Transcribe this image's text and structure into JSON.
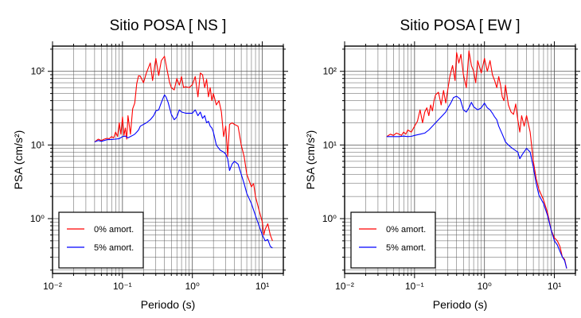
{
  "chart_data": [
    {
      "type": "line",
      "title": "Sitio POSA [ NS ]",
      "xlabel": "Periodo (s)",
      "ylabel": "PSA (cm/s²)",
      "xscale": "log",
      "yscale": "log",
      "xlim": [
        0.01,
        20
      ],
      "ylim": [
        0.18,
        220
      ],
      "grid": true,
      "legend_position": "bottom-left",
      "x_ticks": [
        {
          "value": 0.01,
          "label": "10⁻²"
        },
        {
          "value": 0.1,
          "label": "10⁻¹"
        },
        {
          "value": 1,
          "label": "10⁰"
        },
        {
          "value": 10,
          "label": "10¹"
        }
      ],
      "y_ticks": [
        {
          "value": 1,
          "label": "10⁰"
        },
        {
          "value": 10,
          "label": "10¹"
        },
        {
          "value": 100,
          "label": "10²"
        }
      ],
      "series": [
        {
          "name": "0% amort.",
          "color": "#ff0000",
          "points": [
            [
              0.04,
              11
            ],
            [
              0.045,
              12
            ],
            [
              0.05,
              11.5
            ],
            [
              0.055,
              12
            ],
            [
              0.06,
              12.3
            ],
            [
              0.065,
              12.2
            ],
            [
              0.07,
              13
            ],
            [
              0.075,
              12.5
            ],
            [
              0.08,
              15
            ],
            [
              0.085,
              13
            ],
            [
              0.09,
              20
            ],
            [
              0.095,
              14
            ],
            [
              0.1,
              24
            ],
            [
              0.105,
              13.5
            ],
            [
              0.11,
              17
            ],
            [
              0.115,
              12
            ],
            [
              0.12,
              25
            ],
            [
              0.13,
              14
            ],
            [
              0.14,
              31
            ],
            [
              0.15,
              37
            ],
            [
              0.16,
              68
            ],
            [
              0.17,
              87
            ],
            [
              0.18,
              86
            ],
            [
              0.2,
              70
            ],
            [
              0.22,
              95
            ],
            [
              0.25,
              130
            ],
            [
              0.27,
              75
            ],
            [
              0.3,
              150
            ],
            [
              0.33,
              88
            ],
            [
              0.36,
              140
            ],
            [
              0.4,
              160
            ],
            [
              0.43,
              110
            ],
            [
              0.47,
              72
            ],
            [
              0.5,
              60
            ],
            [
              0.55,
              56
            ],
            [
              0.6,
              80
            ],
            [
              0.65,
              65
            ],
            [
              0.7,
              85
            ],
            [
              0.75,
              60
            ],
            [
              0.8,
              62
            ],
            [
              0.9,
              60
            ],
            [
              1.0,
              66
            ],
            [
              1.1,
              85
            ],
            [
              1.2,
              45
            ],
            [
              1.3,
              95
            ],
            [
              1.4,
              90
            ],
            [
              1.5,
              60
            ],
            [
              1.6,
              78
            ],
            [
              1.7,
              45
            ],
            [
              1.8,
              60
            ],
            [
              1.9,
              40
            ],
            [
              2.0,
              50
            ],
            [
              2.2,
              35
            ],
            [
              2.4,
              40
            ],
            [
              2.6,
              28
            ],
            [
              2.8,
              13
            ],
            [
              3.0,
              18
            ],
            [
              3.2,
              7
            ],
            [
              3.4,
              19
            ],
            [
              3.7,
              20
            ],
            [
              4.0,
              19
            ],
            [
              4.5,
              18
            ],
            [
              5.0,
              10
            ],
            [
              5.5,
              7
            ],
            [
              6.0,
              4
            ],
            [
              7.0,
              2.7
            ],
            [
              7.5,
              3
            ],
            [
              8.0,
              2
            ],
            [
              9.0,
              1.3
            ],
            [
              10.0,
              0.9
            ],
            [
              10.5,
              0.6
            ],
            [
              11.0,
              0.72
            ],
            [
              12.0,
              0.85
            ],
            [
              13.0,
              0.6
            ],
            [
              14.0,
              0.5
            ]
          ]
        },
        {
          "name": "5% amort.",
          "color": "#0000ff",
          "points": [
            [
              0.04,
              11
            ],
            [
              0.045,
              11.5
            ],
            [
              0.05,
              11.2
            ],
            [
              0.06,
              11.8
            ],
            [
              0.07,
              11.9
            ],
            [
              0.08,
              12
            ],
            [
              0.09,
              12.2
            ],
            [
              0.1,
              13
            ],
            [
              0.11,
              13.2
            ],
            [
              0.12,
              12.5
            ],
            [
              0.13,
              13
            ],
            [
              0.14,
              13.5
            ],
            [
              0.15,
              14
            ],
            [
              0.16,
              15
            ],
            [
              0.17,
              16
            ],
            [
              0.18,
              18
            ],
            [
              0.2,
              19
            ],
            [
              0.22,
              20
            ],
            [
              0.25,
              22
            ],
            [
              0.28,
              25
            ],
            [
              0.3,
              29
            ],
            [
              0.33,
              30
            ],
            [
              0.35,
              35
            ],
            [
              0.38,
              43
            ],
            [
              0.4,
              48
            ],
            [
              0.42,
              45
            ],
            [
              0.45,
              38
            ],
            [
              0.5,
              26
            ],
            [
              0.55,
              22
            ],
            [
              0.6,
              24
            ],
            [
              0.65,
              30
            ],
            [
              0.7,
              28
            ],
            [
              0.8,
              27
            ],
            [
              0.9,
              27
            ],
            [
              1.0,
              27
            ],
            [
              1.1,
              30
            ],
            [
              1.2,
              25
            ],
            [
              1.3,
              28
            ],
            [
              1.4,
              23
            ],
            [
              1.5,
              25
            ],
            [
              1.6,
              20
            ],
            [
              1.7,
              21
            ],
            [
              1.8,
              18
            ],
            [
              1.9,
              17
            ],
            [
              2.0,
              15
            ],
            [
              2.2,
              10
            ],
            [
              2.5,
              8.5
            ],
            [
              2.8,
              8
            ],
            [
              3.0,
              7.5
            ],
            [
              3.2,
              6.5
            ],
            [
              3.4,
              4.5
            ],
            [
              3.7,
              5.5
            ],
            [
              4.0,
              6
            ],
            [
              4.5,
              5.5
            ],
            [
              5.0,
              4
            ],
            [
              5.5,
              3
            ],
            [
              6.0,
              2.2
            ],
            [
              7.0,
              1.6
            ],
            [
              8.0,
              1.1
            ],
            [
              9.0,
              0.8
            ],
            [
              10.0,
              0.6
            ],
            [
              11.0,
              0.5
            ],
            [
              12.0,
              0.52
            ],
            [
              13.0,
              0.42
            ],
            [
              14.0,
              0.4
            ]
          ]
        }
      ]
    },
    {
      "type": "line",
      "title": "Sitio POSA [ EW ]",
      "xlabel": "Periodo (s)",
      "ylabel": "PSA (cm/s²)",
      "xscale": "log",
      "yscale": "log",
      "xlim": [
        0.01,
        20
      ],
      "ylim": [
        0.18,
        220
      ],
      "grid": true,
      "legend_position": "bottom-left",
      "x_ticks": [
        {
          "value": 0.01,
          "label": "10⁻²"
        },
        {
          "value": 0.1,
          "label": "10⁻¹"
        },
        {
          "value": 1,
          "label": "10⁰"
        },
        {
          "value": 10,
          "label": "10¹"
        }
      ],
      "y_ticks": [
        {
          "value": 1,
          "label": "10⁰"
        },
        {
          "value": 10,
          "label": "10¹"
        },
        {
          "value": 100,
          "label": "10²"
        }
      ],
      "series": [
        {
          "name": "0% amort.",
          "color": "#ff0000",
          "points": [
            [
              0.04,
              13
            ],
            [
              0.045,
              14
            ],
            [
              0.05,
              13.5
            ],
            [
              0.055,
              14.5
            ],
            [
              0.06,
              14
            ],
            [
              0.065,
              13.5
            ],
            [
              0.07,
              15
            ],
            [
              0.075,
              14
            ],
            [
              0.08,
              16
            ],
            [
              0.09,
              15
            ],
            [
              0.1,
              18
            ],
            [
              0.11,
              21
            ],
            [
              0.12,
              30
            ],
            [
              0.13,
              20
            ],
            [
              0.14,
              28
            ],
            [
              0.15,
              32
            ],
            [
              0.16,
              25
            ],
            [
              0.17,
              35
            ],
            [
              0.18,
              29
            ],
            [
              0.19,
              40
            ],
            [
              0.2,
              48
            ],
            [
              0.22,
              52
            ],
            [
              0.24,
              35
            ],
            [
              0.26,
              55
            ],
            [
              0.28,
              37
            ],
            [
              0.3,
              58
            ],
            [
              0.32,
              85
            ],
            [
              0.35,
              120
            ],
            [
              0.38,
              75
            ],
            [
              0.4,
              180
            ],
            [
              0.43,
              130
            ],
            [
              0.46,
              170
            ],
            [
              0.5,
              90
            ],
            [
              0.55,
              60
            ],
            [
              0.6,
              190
            ],
            [
              0.65,
              120
            ],
            [
              0.7,
              100
            ],
            [
              0.75,
              70
            ],
            [
              0.8,
              140
            ],
            [
              0.9,
              95
            ],
            [
              1.0,
              150
            ],
            [
              1.1,
              100
            ],
            [
              1.2,
              140
            ],
            [
              1.3,
              90
            ],
            [
              1.4,
              75
            ],
            [
              1.5,
              60
            ],
            [
              1.6,
              85
            ],
            [
              1.7,
              65
            ],
            [
              1.8,
              45
            ],
            [
              1.9,
              40
            ],
            [
              2.0,
              65
            ],
            [
              2.2,
              35
            ],
            [
              2.4,
              28
            ],
            [
              2.6,
              26
            ],
            [
              2.8,
              36
            ],
            [
              3.0,
              22
            ],
            [
              3.2,
              15
            ],
            [
              3.4,
              25
            ],
            [
              3.7,
              18
            ],
            [
              4.0,
              25
            ],
            [
              4.5,
              15
            ],
            [
              5.0,
              6
            ],
            [
              5.5,
              3.5
            ],
            [
              6.0,
              2.5
            ],
            [
              7.0,
              1.8
            ],
            [
              8.0,
              1.2
            ],
            [
              9.0,
              0.7
            ],
            [
              10.0,
              0.55
            ],
            [
              11.0,
              0.5
            ],
            [
              12.0,
              0.42
            ],
            [
              13.0,
              0.3
            ],
            [
              14.0,
              0.28
            ],
            [
              15.0,
              0.21
            ]
          ]
        },
        {
          "name": "5% amort.",
          "color": "#0000ff",
          "points": [
            [
              0.04,
              13
            ],
            [
              0.05,
              13
            ],
            [
              0.06,
              13
            ],
            [
              0.07,
              13.2
            ],
            [
              0.08,
              13
            ],
            [
              0.09,
              13.1
            ],
            [
              0.1,
              13.5
            ],
            [
              0.12,
              14
            ],
            [
              0.14,
              14.5
            ],
            [
              0.16,
              16
            ],
            [
              0.18,
              18
            ],
            [
              0.2,
              20
            ],
            [
              0.22,
              22
            ],
            [
              0.25,
              25
            ],
            [
              0.28,
              28
            ],
            [
              0.3,
              32
            ],
            [
              0.33,
              37
            ],
            [
              0.36,
              44
            ],
            [
              0.4,
              46
            ],
            [
              0.45,
              42
            ],
            [
              0.5,
              30
            ],
            [
              0.55,
              28
            ],
            [
              0.6,
              32
            ],
            [
              0.65,
              38
            ],
            [
              0.7,
              33
            ],
            [
              0.8,
              30
            ],
            [
              0.9,
              32
            ],
            [
              1.0,
              37
            ],
            [
              1.1,
              32
            ],
            [
              1.2,
              30
            ],
            [
              1.3,
              27
            ],
            [
              1.4,
              24
            ],
            [
              1.5,
              22
            ],
            [
              1.6,
              18
            ],
            [
              1.8,
              14
            ],
            [
              2.0,
              11
            ],
            [
              2.2,
              10
            ],
            [
              2.5,
              9
            ],
            [
              3.0,
              8
            ],
            [
              3.2,
              6.5
            ],
            [
              3.5,
              7.5
            ],
            [
              4.0,
              9
            ],
            [
              4.5,
              8
            ],
            [
              5.0,
              5
            ],
            [
              5.5,
              3
            ],
            [
              6.0,
              2.1
            ],
            [
              7.0,
              1.6
            ],
            [
              8.0,
              1.1
            ],
            [
              9.0,
              0.7
            ],
            [
              10.0,
              0.5
            ],
            [
              11.0,
              0.44
            ],
            [
              12.0,
              0.36
            ],
            [
              13.0,
              0.3
            ],
            [
              14.0,
              0.27
            ],
            [
              15.0,
              0.21
            ]
          ]
        }
      ]
    }
  ]
}
